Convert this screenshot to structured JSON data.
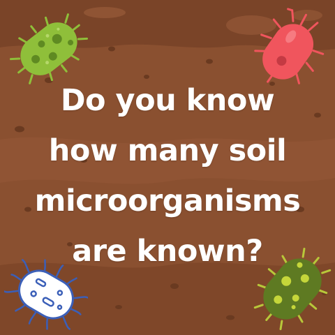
{
  "headline": {
    "lines": [
      "Do you know",
      "how many soil",
      "microorganisms",
      "are known?"
    ]
  },
  "colors": {
    "soil_base": "#8a5030",
    "soil_dark": "#6e3e22",
    "soil_light": "#9a5c38",
    "text": "#ffffff",
    "green_microbe": "#8fbf3a",
    "red_microbe": "#f0555d",
    "white_microbe": "#ffffff",
    "olive_microbe": "#5e7a22"
  },
  "microbes": [
    {
      "name": "green-bacterium-icon"
    },
    {
      "name": "red-bacterium-icon"
    },
    {
      "name": "white-bacterium-icon"
    },
    {
      "name": "olive-bacterium-icon"
    }
  ]
}
